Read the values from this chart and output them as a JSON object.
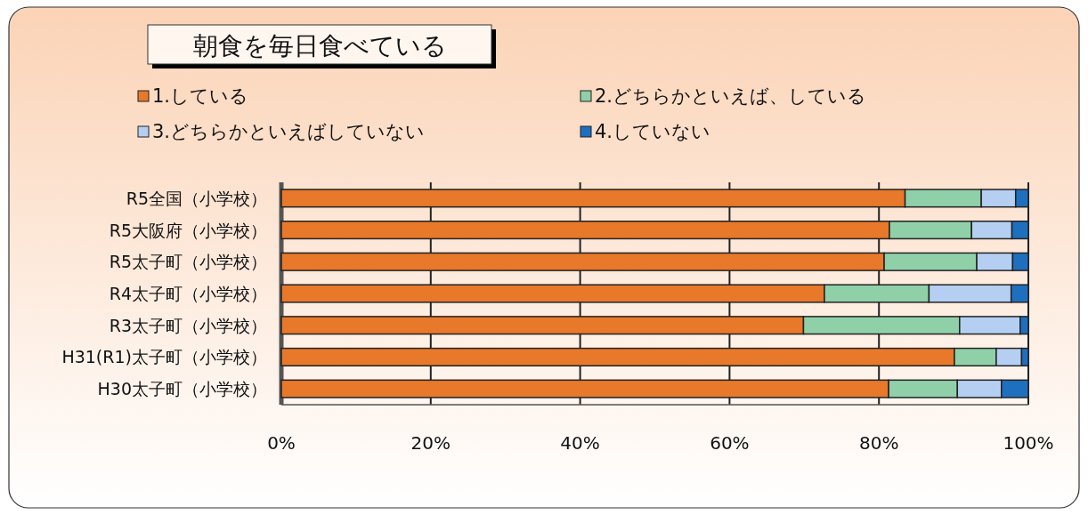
{
  "chart_data": {
    "type": "bar",
    "orientation": "horizontal",
    "stacked": true,
    "title": "朝食を毎日食べている",
    "categories": [
      "R5全国（小学校）",
      "R5大阪府（小学校）",
      "R5太子町（小学校）",
      "R4太子町（小学校）",
      "R3太子町（小学校）",
      "H31(R1)太子町（小学校）",
      "H30太子町（小学校）"
    ],
    "series": [
      {
        "name": "1.している",
        "color": "#e8782a",
        "values": [
          83.5,
          81.4,
          80.7,
          72.7,
          69.9,
          90.1,
          81.3
        ]
      },
      {
        "name": "2.どちらかといえば、している",
        "color": "#8fd0a8",
        "values": [
          10.2,
          11.0,
          12.4,
          14.0,
          20.9,
          5.6,
          9.2
        ]
      },
      {
        "name": "3.どちらかといえばしていない",
        "color": "#b4cff2",
        "values": [
          4.6,
          5.4,
          4.8,
          11.0,
          8.1,
          3.4,
          5.9
        ]
      },
      {
        "name": "4.していない",
        "color": "#1f6fbf",
        "values": [
          1.7,
          2.2,
          2.1,
          2.3,
          1.1,
          0.9,
          3.6
        ]
      }
    ],
    "xlim": [
      0,
      100
    ],
    "xticks": [
      {
        "value": 0,
        "label": "0%"
      },
      {
        "value": 20,
        "label": "20%"
      },
      {
        "value": 40,
        "label": "40%"
      },
      {
        "value": 60,
        "label": "60%"
      },
      {
        "value": 80,
        "label": "80%"
      },
      {
        "value": 100,
        "label": "100%"
      }
    ],
    "grid": "x",
    "legend": "top"
  }
}
